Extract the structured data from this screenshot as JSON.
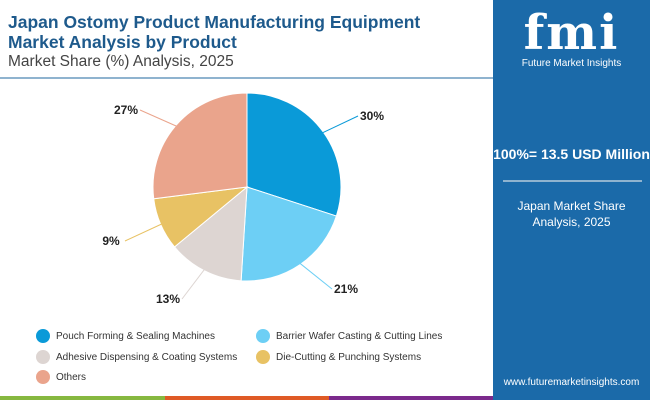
{
  "header": {
    "title": "Japan Ostomy Product Manufacturing Equipment Market Analysis by Product",
    "subtitle": "Market Share (%) Analysis, 2025"
  },
  "panel": {
    "logo_text": "fmi",
    "logo_sub": "Future Market Insights",
    "total": "100%=  13.5 USD Million",
    "subtitle": "Japan Market Share Analysis, 2025",
    "url": "www.futuremarketinsights.com"
  },
  "colors": {
    "panel": "#1b6aa9",
    "bar_green": "#86b840",
    "bar_orange": "#df5a26",
    "bar_purple": "#7b2a8c"
  },
  "chart_data": {
    "type": "pie",
    "categories": [
      "Pouch Forming & Sealing Machines",
      "Barrier Wafer Casting & Cutting Lines",
      "Adhesive Dispensing & Coating Systems",
      "Die-Cutting & Punching Systems",
      "Others"
    ],
    "values": [
      30,
      21,
      13,
      9,
      27
    ],
    "labels": [
      "30%",
      "21%",
      "13%",
      "9%",
      "27%"
    ],
    "colors": [
      "#0a9ad8",
      "#6dcff5",
      "#ddd5d2",
      "#e8c264",
      "#eaa48c"
    ],
    "start": "top",
    "direction": "clockwise",
    "legend_placement": "bottom"
  }
}
